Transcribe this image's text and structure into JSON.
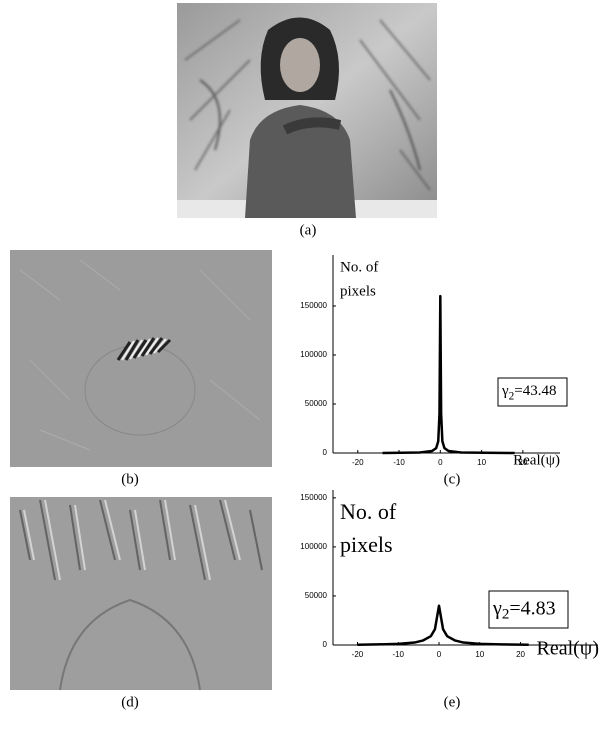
{
  "captions": [
    "(a)",
    "(b)",
    "(c)",
    "(d)",
    "(e)"
  ],
  "chart_data": [
    {
      "type": "line",
      "ylabel": [
        "No. of",
        "pixels"
      ],
      "xlabel": "Real(ψ)",
      "annotation": {
        "symbol": "γ",
        "subscript": "2",
        "text": "=43.48"
      },
      "x": [
        -14,
        -5,
        -2,
        -1,
        -0.5,
        -0.2,
        0,
        0.2,
        0.5,
        1,
        2,
        5,
        18
      ],
      "series": [
        {
          "color": "#000000",
          "values": [
            0,
            500,
            2000,
            5000,
            12000,
            40000,
            160000,
            40000,
            12000,
            5000,
            2000,
            500,
            0
          ]
        }
      ],
      "xlim": [
        -26,
        29
      ],
      "xticks": [
        -20,
        -10,
        0,
        10,
        20
      ],
      "ylim": [
        0,
        202000
      ],
      "yticks": [
        0,
        50000,
        100000,
        150000
      ]
    },
    {
      "type": "line",
      "ylabel": [
        "No. of",
        "pixels"
      ],
      "xlabel": "Real(ψ)",
      "annotation": {
        "symbol": "γ",
        "subscript": "2",
        "text": "=4.83"
      },
      "x": [
        -20,
        -15,
        -10,
        -6,
        -4,
        -2,
        -1,
        0,
        1,
        2,
        4,
        6,
        10,
        15,
        22
      ],
      "series": [
        {
          "color": "#000000",
          "values": [
            300,
            600,
            1200,
            2500,
            4500,
            9000,
            16000,
            40000,
            16000,
            9000,
            4500,
            2500,
            1200,
            600,
            300
          ]
        }
      ],
      "xlim": [
        -26,
        39
      ],
      "xticks": [
        -20,
        -10,
        0,
        10,
        20
      ],
      "ylim": [
        0,
        158000
      ],
      "yticks": [
        0,
        50000,
        100000,
        150000
      ]
    }
  ]
}
